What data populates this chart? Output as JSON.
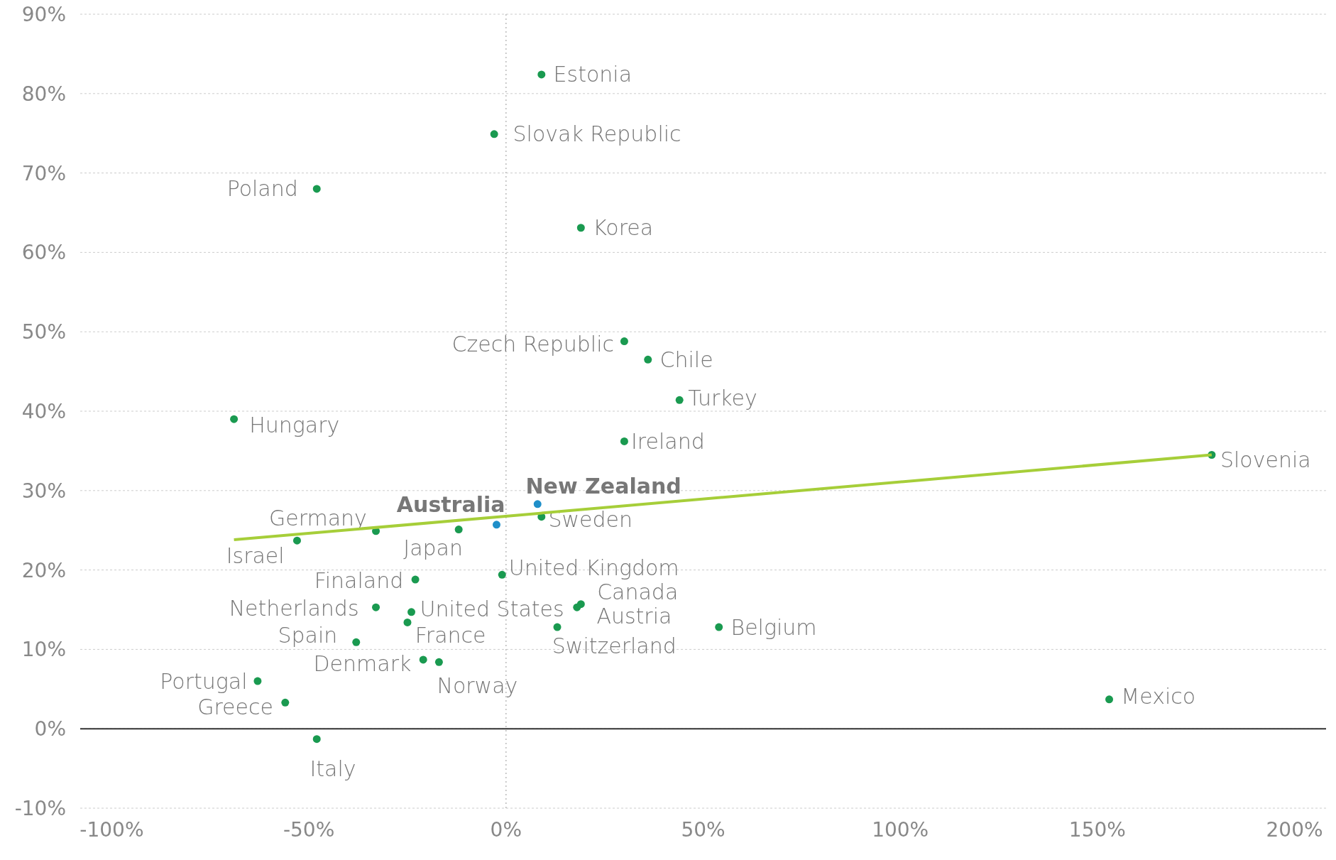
{
  "chart_data": {
    "type": "scatter",
    "xlim": [
      -108,
      208
    ],
    "ylim": [
      -10,
      90
    ],
    "xticks": [
      {
        "value": -100,
        "label": "-100%"
      },
      {
        "value": -50,
        "label": "-50%"
      },
      {
        "value": 0,
        "label": "0%"
      },
      {
        "value": 50,
        "label": "50%"
      },
      {
        "value": 100,
        "label": "100%"
      },
      {
        "value": 150,
        "label": "150%"
      },
      {
        "value": 200,
        "label": "200%"
      }
    ],
    "yticks": [
      {
        "value": -10,
        "label": "-10%"
      },
      {
        "value": 0,
        "label": "0%"
      },
      {
        "value": 10,
        "label": "10%"
      },
      {
        "value": 20,
        "label": "20%"
      },
      {
        "value": 30,
        "label": "30%"
      },
      {
        "value": 40,
        "label": "40%"
      },
      {
        "value": 50,
        "label": "50%"
      },
      {
        "value": 60,
        "label": "60%"
      },
      {
        "value": 70,
        "label": "70%"
      },
      {
        "value": 80,
        "label": "80%"
      },
      {
        "value": 90,
        "label": "90%"
      }
    ],
    "grid": "y",
    "marker": "circle",
    "ref_lines": [
      {
        "axis": "y",
        "value": 0,
        "color": "#333333",
        "line_style": "solid"
      },
      {
        "axis": "x",
        "value": 0,
        "color": "#bbbbbb",
        "line_style": "dotted"
      }
    ],
    "series": [
      {
        "name": "Estonia",
        "color": "#1a9a50",
        "x": [
          9
        ],
        "values": [
          82.4
        ]
      },
      {
        "name": "Slovak Republic",
        "color": "#1a9a50",
        "x": [
          -3
        ],
        "values": [
          74.9
        ]
      },
      {
        "name": "Poland",
        "color": "#1a9a50",
        "x": [
          -48
        ],
        "values": [
          68
        ]
      },
      {
        "name": "Korea",
        "color": "#1a9a50",
        "x": [
          19
        ],
        "values": [
          63.1
        ]
      },
      {
        "name": "Czech Republic",
        "color": "#1a9a50",
        "x": [
          30
        ],
        "values": [
          48.8
        ]
      },
      {
        "name": "Chile",
        "color": "#1a9a50",
        "x": [
          36
        ],
        "values": [
          46.5
        ]
      },
      {
        "name": "Turkey",
        "color": "#1a9a50",
        "x": [
          44
        ],
        "values": [
          41.4
        ]
      },
      {
        "name": "Hungary",
        "color": "#1a9a50",
        "x": [
          -69
        ],
        "values": [
          39
        ]
      },
      {
        "name": "Ireland",
        "color": "#1a9a50",
        "x": [
          30
        ],
        "values": [
          36.2
        ]
      },
      {
        "name": "Slovenia",
        "color": "#1a9a50",
        "x": [
          179
        ],
        "values": [
          34.5
        ]
      },
      {
        "name": "New Zealand",
        "color": "#1f8fc9",
        "x": [
          8
        ],
        "values": [
          28.3
        ]
      },
      {
        "name": "Australia",
        "color": "#1f8fc9",
        "x": [
          -2.4
        ],
        "values": [
          25.7
        ]
      },
      {
        "name": "Sweden",
        "color": "#1a9a50",
        "x": [
          9
        ],
        "values": [
          26.7
        ]
      },
      {
        "name": "Japan",
        "color": "#1a9a50",
        "x": [
          -12
        ],
        "values": [
          25.1
        ]
      },
      {
        "name": "Germany",
        "color": "#1a9a50",
        "x": [
          -33
        ],
        "values": [
          24.9
        ]
      },
      {
        "name": "Israel",
        "color": "#1a9a50",
        "x": [
          -53
        ],
        "values": [
          23.7
        ]
      },
      {
        "name": "Finaland",
        "color": "#1a9a50",
        "x": [
          -23
        ],
        "values": [
          18.8
        ]
      },
      {
        "name": "United Kingdom",
        "color": "#1a9a50",
        "x": [
          -1
        ],
        "values": [
          19.4
        ]
      },
      {
        "name": "Canada",
        "color": "#1a9a50",
        "x": [
          19
        ],
        "values": [
          15.7
        ]
      },
      {
        "name": "Austria",
        "color": "#1a9a50",
        "x": [
          18
        ],
        "values": [
          15.3
        ]
      },
      {
        "name": "Netherlands",
        "color": "#1a9a50",
        "x": [
          -33
        ],
        "values": [
          15.3
        ]
      },
      {
        "name": "United States",
        "color": "#1a9a50",
        "x": [
          -24
        ],
        "values": [
          14.7
        ]
      },
      {
        "name": "France",
        "color": "#1a9a50",
        "x": [
          -25
        ],
        "values": [
          13.4
        ]
      },
      {
        "name": "Switzerland",
        "color": "#1a9a50",
        "x": [
          13
        ],
        "values": [
          12.8
        ]
      },
      {
        "name": "Belgium",
        "color": "#1a9a50",
        "x": [
          54
        ],
        "values": [
          12.8
        ]
      },
      {
        "name": "Spain",
        "color": "#1a9a50",
        "x": [
          -38
        ],
        "values": [
          10.9
        ]
      },
      {
        "name": "Denmark",
        "color": "#1a9a50",
        "x": [
          -21
        ],
        "values": [
          8.7
        ]
      },
      {
        "name": "Norway",
        "color": "#1a9a50",
        "x": [
          -17
        ],
        "values": [
          8.4
        ]
      },
      {
        "name": "Portugal",
        "color": "#1a9a50",
        "x": [
          -63
        ],
        "values": [
          6
        ]
      },
      {
        "name": "Greece",
        "color": "#1a9a50",
        "x": [
          -56
        ],
        "values": [
          3.3
        ]
      },
      {
        "name": "Mexico",
        "color": "#1a9a50",
        "x": [
          153
        ],
        "values": [
          3.7
        ]
      },
      {
        "name": "Italy",
        "color": "#1a9a50",
        "x": [
          -48
        ],
        "values": [
          -1.3
        ]
      },
      {
        "type": "line",
        "marker": "none",
        "color": "#a6ce39",
        "x": [
          -69,
          179
        ],
        "values": [
          23.8,
          34.5
        ]
      }
    ]
  }
}
